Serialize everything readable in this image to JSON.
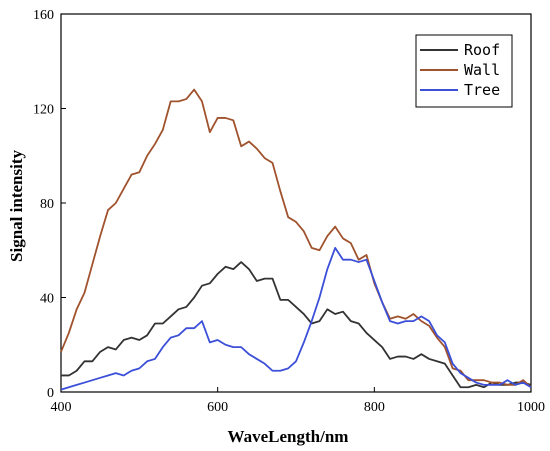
{
  "chart_data": {
    "type": "line",
    "xlabel": "WaveLength/nm",
    "ylabel": "Signal intensity",
    "xlim": [
      400,
      1000
    ],
    "ylim": [
      0,
      160
    ],
    "xticks": [
      400,
      600,
      800,
      1000
    ],
    "yticks": [
      0,
      40,
      80,
      120,
      160
    ],
    "grid": false,
    "legend_position": "top-right",
    "x": [
      400,
      410,
      420,
      430,
      440,
      450,
      460,
      470,
      480,
      490,
      500,
      510,
      520,
      530,
      540,
      550,
      560,
      570,
      580,
      590,
      600,
      610,
      620,
      630,
      640,
      650,
      660,
      670,
      680,
      690,
      700,
      710,
      720,
      730,
      740,
      750,
      760,
      770,
      780,
      790,
      800,
      810,
      820,
      830,
      840,
      850,
      860,
      870,
      880,
      890,
      900,
      910,
      920,
      930,
      940,
      950,
      960,
      970,
      980,
      990,
      1000
    ],
    "series": [
      {
        "name": "Roof",
        "color": "#333333",
        "values": [
          7,
          7,
          9,
          13,
          13,
          17,
          19,
          18,
          22,
          23,
          22,
          24,
          29,
          29,
          32,
          35,
          36,
          40,
          45,
          46,
          50,
          53,
          52,
          55,
          52,
          47,
          48,
          48,
          39,
          39,
          36,
          33,
          29,
          30,
          35,
          33,
          34,
          30,
          29,
          25,
          22,
          19,
          14,
          15,
          15,
          14,
          16,
          14,
          13,
          12,
          7,
          2,
          2,
          3,
          2,
          4,
          3,
          3,
          4,
          4,
          3
        ]
      },
      {
        "name": "Wall",
        "color": "#a0522d",
        "values": [
          17,
          25,
          35,
          42,
          54,
          66,
          77,
          80,
          86,
          92,
          93,
          100,
          105,
          111,
          123,
          123,
          124,
          128,
          123,
          110,
          116,
          116,
          115,
          104,
          106,
          103,
          99,
          97,
          85,
          74,
          72,
          68,
          61,
          60,
          66,
          70,
          65,
          63,
          56,
          58,
          46,
          38,
          31,
          32,
          31,
          33,
          30,
          28,
          23,
          19,
          10,
          9,
          5,
          5,
          5,
          4,
          4,
          3,
          3,
          5,
          2
        ]
      },
      {
        "name": "Tree",
        "color": "#3b4fd8",
        "values": [
          1,
          2,
          3,
          4,
          5,
          6,
          7,
          8,
          7,
          9,
          10,
          13,
          14,
          19,
          23,
          24,
          27,
          27,
          30,
          21,
          22,
          20,
          19,
          19,
          16,
          14,
          12,
          9,
          9,
          10,
          13,
          21,
          30,
          40,
          52,
          61,
          56,
          56,
          55,
          56,
          47,
          38,
          30,
          29,
          30,
          30,
          32,
          30,
          24,
          21,
          12,
          8,
          6,
          4,
          3,
          3,
          3,
          5,
          3,
          4,
          2
        ]
      }
    ]
  }
}
